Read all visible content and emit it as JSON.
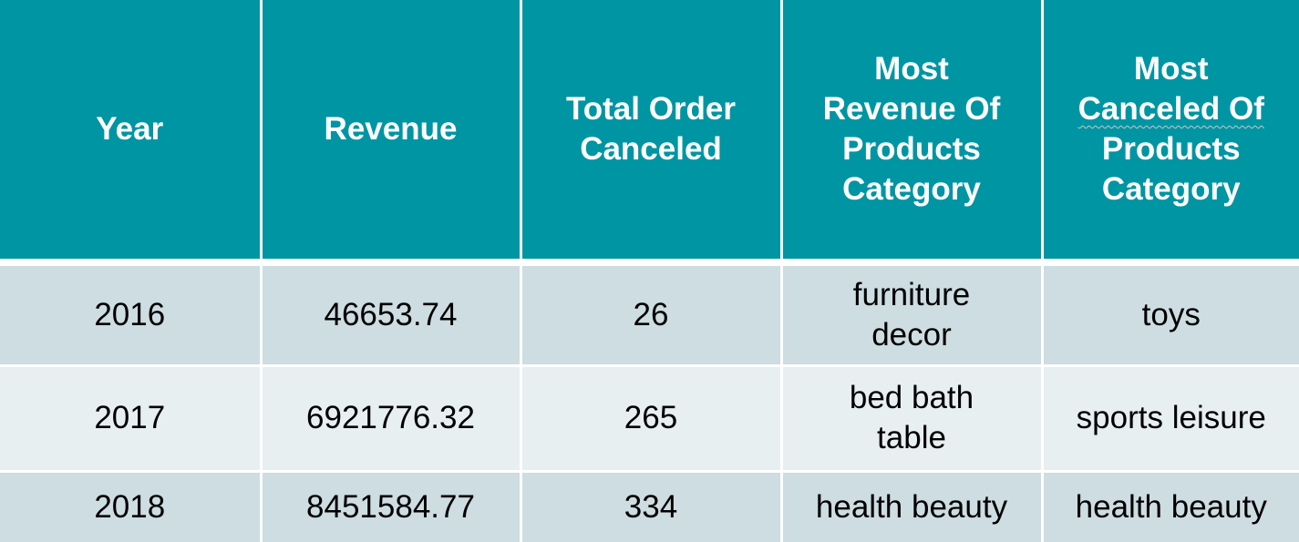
{
  "table": {
    "headers": [
      {
        "line1": "Year"
      },
      {
        "line1": "Revenue"
      },
      {
        "line1": "Total Order",
        "line2": "Canceled"
      },
      {
        "line1": "Most",
        "line2": "Revenue Of",
        "line3": "Products",
        "line4": "Category"
      },
      {
        "line1": "Most",
        "line2": "Canceled Of",
        "line3": "Products",
        "line4": "Category"
      }
    ],
    "rows": [
      {
        "year": "2016",
        "revenue": "46653.74",
        "total_order_canceled": "26",
        "most_revenue_category": {
          "line1": "furniture",
          "line2": "decor"
        },
        "most_canceled_category": {
          "line1": "toys"
        }
      },
      {
        "year": "2017",
        "revenue": "6921776.32",
        "total_order_canceled": "265",
        "most_revenue_category": {
          "line1": "bed bath",
          "line2": "table"
        },
        "most_canceled_category": {
          "line1": "sports leisure"
        }
      },
      {
        "year": "2018",
        "revenue": "8451584.77",
        "total_order_canceled": "334",
        "most_revenue_category": {
          "line1": "health beauty"
        },
        "most_canceled_category": {
          "line1": "health beauty"
        }
      }
    ]
  },
  "colors": {
    "header_bg": "#0095a3",
    "row_odd_bg": "#cddde1",
    "row_even_bg": "#e7eff1"
  }
}
